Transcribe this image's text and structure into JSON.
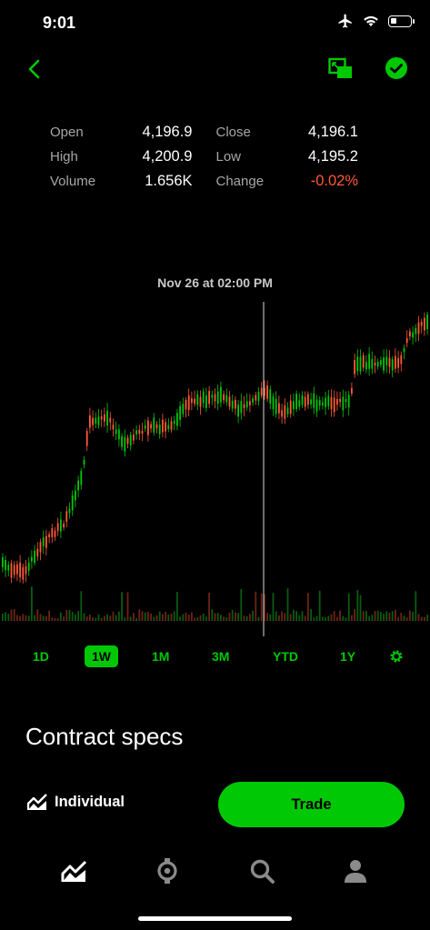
{
  "status": {
    "time": "9:01",
    "battery_level": 0.3
  },
  "nav": {
    "back_icon": "chevron-left-icon",
    "pip_icon": "picture-in-picture-icon",
    "watchlist_icon": "check-circle-icon"
  },
  "stats": {
    "open_label": "Open",
    "open_value": "4,196.9",
    "close_label": "Close",
    "close_value": "4,196.1",
    "high_label": "High",
    "high_value": "4,200.9",
    "low_label": "Low",
    "low_value": "4,195.2",
    "volume_label": "Volume",
    "volume_value": "1.656K",
    "change_label": "Change",
    "change_value": "-0.02%"
  },
  "chart": {
    "crosshair_label": "Nov 26 at 02:00 PM",
    "up_color": "#00c805",
    "down_color": "#ff5a36"
  },
  "timeframes": [
    {
      "label": "1D",
      "active": false
    },
    {
      "label": "1W",
      "active": true
    },
    {
      "label": "1M",
      "active": false
    },
    {
      "label": "3M",
      "active": false
    },
    {
      "label": "YTD",
      "active": false
    },
    {
      "label": "1Y",
      "active": false
    }
  ],
  "section_title": "Contract specs",
  "account": {
    "label": "Individual"
  },
  "trade_button": "Trade",
  "colors": {
    "accent": "#00c805",
    "negative": "#ff5a36"
  },
  "tabs": [
    "chart-icon",
    "browse-icon",
    "search-icon",
    "account-icon"
  ]
}
